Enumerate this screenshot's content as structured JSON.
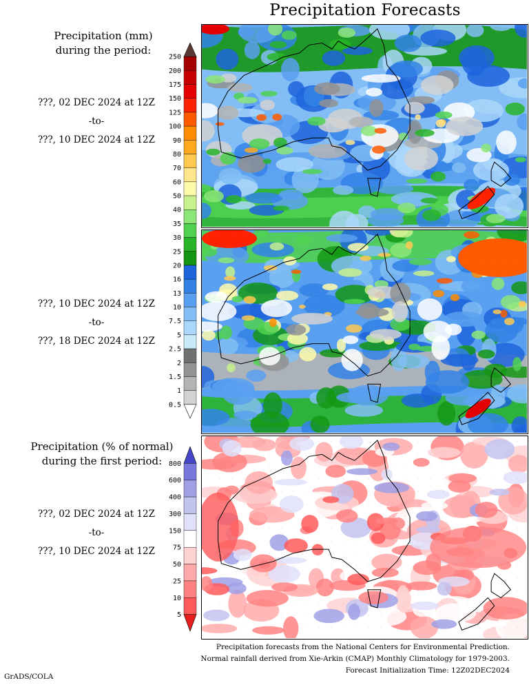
{
  "title": "Precipitation Forecasts",
  "legend_amount": {
    "heading_line1": "Precipitation (mm)",
    "heading_line2": "during the period:",
    "ticks": [
      "250",
      "200",
      "175",
      "150",
      "125",
      "100",
      "90",
      "80",
      "70",
      "60",
      "50",
      "40",
      "35",
      "30",
      "25",
      "20",
      "16",
      "13",
      "10",
      "7.5",
      "5",
      "2.5",
      "2",
      "1.5",
      "1",
      "0.5"
    ],
    "colors": [
      "#5a3a33",
      "#a50000",
      "#c60000",
      "#e40000",
      "#ff2200",
      "#ff5a00",
      "#ff8c00",
      "#ffa820",
      "#ffc850",
      "#ffe68c",
      "#fffaaa",
      "#c8f08c",
      "#8ce678",
      "#50d250",
      "#28b428",
      "#149614",
      "#1e64dc",
      "#3282e6",
      "#5aa0f0",
      "#82bef5",
      "#aad7fa",
      "#c8ebfa",
      "#707070",
      "#929292",
      "#b4b4b4",
      "#d2d2d2",
      "#ffffff"
    ]
  },
  "legend_percent": {
    "heading_line1": "Precipitation (% of normal)",
    "heading_line2": "during the first period:",
    "ticks": [
      "800",
      "600",
      "400",
      "300",
      "150",
      "75",
      "50",
      "25",
      "10",
      "5"
    ],
    "colors": [
      "#4646c8",
      "#7878dc",
      "#a0a0e6",
      "#c3c3f0",
      "#e1e1fa",
      "#ffffff",
      "#ffd2d2",
      "#ffaaaa",
      "#ff8282",
      "#ff5a5a",
      "#e61e1e"
    ]
  },
  "periods": {
    "p1_start": "???, 02 DEC 2024 at 12Z",
    "p1_to": "-to-",
    "p1_end": "???, 10 DEC 2024 at 12Z",
    "p2_start": "???, 10 DEC 2024 at 12Z",
    "p2_to": "-to-",
    "p2_end": "???, 18 DEC 2024 at 12Z",
    "p3_start": "???, 02 DEC 2024 at 12Z",
    "p3_to": "-to-",
    "p3_end": "???, 10 DEC 2024 at 12Z"
  },
  "footer": {
    "line1": "Precipitation forecasts from the National Centers for Environmental Prediction.",
    "line2": "Normal rainfall derived from Xie-Arkin (CMAP) Monthly Climatology for 1979-2003.",
    "line3": "Forecast Initialization Time: 12Z02DEC2024"
  },
  "credit": "GrADS/COLA"
}
